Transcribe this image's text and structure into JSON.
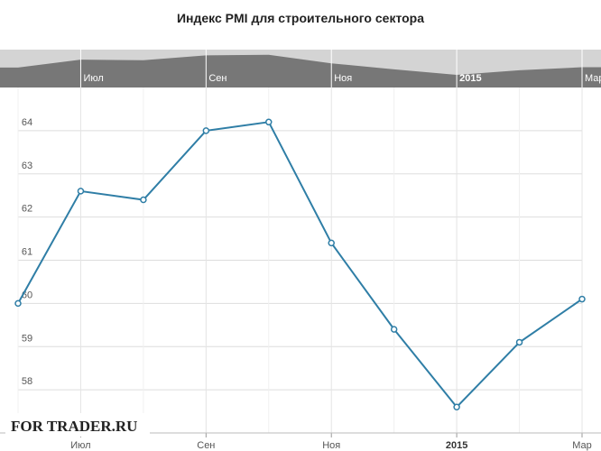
{
  "chart_data": {
    "type": "line",
    "title": "Индекс PMI для строительного сектора",
    "categories": [
      null,
      "Июл",
      null,
      "Сен",
      null,
      "Ноя",
      null,
      "2015",
      null,
      "Мар"
    ],
    "values": [
      60.0,
      62.6,
      62.4,
      64.0,
      64.2,
      61.4,
      59.4,
      57.6,
      59.1,
      60.1
    ],
    "color": "#2f7ea6",
    "ylim": [
      57,
      65
    ],
    "yticks": [
      58,
      59,
      60,
      61,
      62,
      63,
      64
    ],
    "grid": true,
    "watermark": "FOR TRADER.RU"
  }
}
